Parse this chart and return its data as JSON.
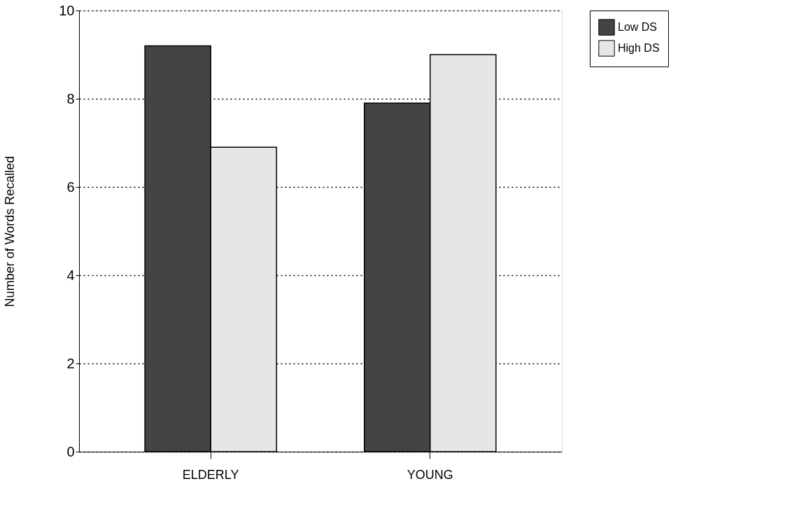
{
  "chart_data": {
    "type": "bar",
    "ylabel": "Number of Words Recalled",
    "categories": [
      "ELDERLY",
      "YOUNG"
    ],
    "series": [
      {
        "name": "Low DS",
        "color": "#444444",
        "values": [
          9.2,
          7.9
        ]
      },
      {
        "name": "High DS",
        "color": "#e6e6e6",
        "values": [
          6.9,
          9.0
        ]
      }
    ],
    "ylim": [
      0,
      10
    ],
    "yticks": [
      0,
      2,
      4,
      6,
      8,
      10
    ],
    "grid": "y",
    "legend": "top right"
  }
}
